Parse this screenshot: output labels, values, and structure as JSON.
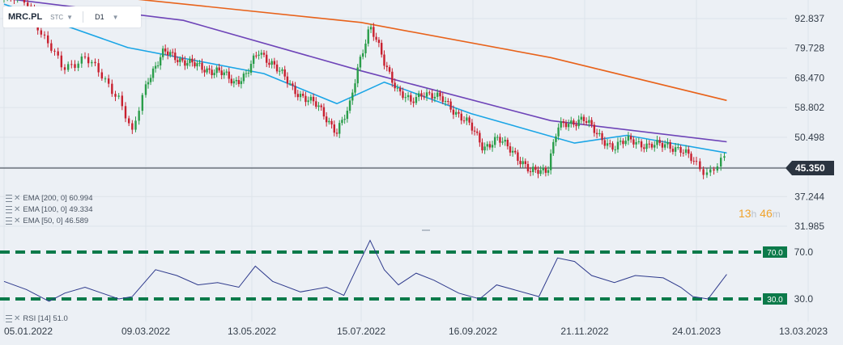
{
  "toolbar": {
    "symbol": "MRC.PL",
    "exchange": "STC",
    "timeframe": "D1"
  },
  "indicators": {
    "ema": [
      {
        "label": "EMA [200, 0] 60.994",
        "color": "#e8621a"
      },
      {
        "label": "EMA [100, 0] 49.334",
        "color": "#6e44b8"
      },
      {
        "label": "EMA [50, 0] 46.589",
        "color": "#1aa5e6"
      }
    ],
    "rsi": {
      "label": "RSI [14] 51.0",
      "color": "#2e3a8c"
    }
  },
  "countdown": {
    "hours": "13",
    "h_unit": "h",
    "minutes": "46",
    "m_unit": "m"
  },
  "last_price": "45.350",
  "chart_data": [
    {
      "type": "candlestick",
      "title": "MRC.PL",
      "timeframe": "D1",
      "y_ticks": [
        "92.837",
        "79.728",
        "68.470",
        "58.802",
        "50.498",
        "43.368",
        "37.244",
        "31.985"
      ],
      "y_tick_values": [
        92.837,
        79.728,
        68.47,
        58.802,
        50.498,
        43.368,
        37.244,
        31.985
      ],
      "x_ticks": [
        "05.01.2022",
        "09.03.2022",
        "13.05.2022",
        "15.07.2022",
        "16.09.2022",
        "21.11.2022",
        "24.01.2023",
        "13.03.2023"
      ],
      "price_path": [
        [
          "05.01.2022",
          103
        ],
        [
          "15.01.2022",
          102
        ],
        [
          "22.01.2022",
          85
        ],
        [
          "31.01.2022",
          72
        ],
        [
          "10.02.2022",
          76
        ],
        [
          "25.02.2022",
          62
        ],
        [
          "03.03.2022",
          51
        ],
        [
          "10.03.2022",
          68
        ],
        [
          "20.03.2022",
          78
        ],
        [
          "01.04.2022",
          75
        ],
        [
          "12.04.2022",
          72
        ],
        [
          "22.04.2022",
          71
        ],
        [
          "02.05.2022",
          67
        ],
        [
          "10.05.2022",
          70
        ],
        [
          "17.05.2022",
          78
        ],
        [
          "25.05.2022",
          74
        ],
        [
          "05.06.2022",
          65
        ],
        [
          "20.06.2022",
          59
        ],
        [
          "01.07.2022",
          52
        ],
        [
          "08.07.2022",
          58
        ],
        [
          "14.07.2022",
          75
        ],
        [
          "20.07.2022",
          89
        ],
        [
          "28.07.2022",
          74
        ],
        [
          "05.08.2022",
          64
        ],
        [
          "12.08.2022",
          60
        ],
        [
          "19.08.2022",
          64
        ],
        [
          "30.08.2022",
          61
        ],
        [
          "12.09.2022",
          55
        ],
        [
          "22.09.2022",
          48
        ],
        [
          "30.09.2022",
          50
        ],
        [
          "10.10.2022",
          47
        ],
        [
          "20.10.2022",
          42
        ],
        [
          "30.10.2022",
          43
        ],
        [
          "05.11.2022",
          53
        ],
        [
          "12.11.2022",
          54
        ],
        [
          "20.11.2022",
          56
        ],
        [
          "28.11.2022",
          51
        ],
        [
          "08.12.2022",
          48
        ],
        [
          "18.12.2022",
          50
        ],
        [
          "28.12.2022",
          48
        ],
        [
          "07.01.2023",
          49
        ],
        [
          "15.01.2023",
          47
        ],
        [
          "22.01.2023",
          45
        ],
        [
          "29.01.2023",
          42
        ],
        [
          "06.02.2023",
          45.35
        ]
      ],
      "ema200": [
        [
          "01.03.2022",
          103
        ],
        [
          "15.07.2022",
          91
        ],
        [
          "01.11.2022",
          76
        ],
        [
          "06.02.2023",
          60.994
        ]
      ],
      "ema100": [
        [
          "05.01.2022",
          103
        ],
        [
          "01.04.2022",
          92
        ],
        [
          "15.07.2022",
          71
        ],
        [
          "01.11.2022",
          55
        ],
        [
          "06.02.2023",
          49.334
        ]
      ],
      "ema50": [
        [
          "05.01.2022",
          100
        ],
        [
          "01.03.2022",
          80
        ],
        [
          "20.05.2022",
          70
        ],
        [
          "01.07.2022",
          60
        ],
        [
          "28.07.2022",
          67
        ],
        [
          "15.09.2022",
          57
        ],
        [
          "15.11.2022",
          49
        ],
        [
          "15.12.2022",
          51
        ],
        [
          "06.02.2023",
          46.589
        ]
      ],
      "last_value": 45.35
    },
    {
      "type": "line",
      "title": "RSI [14]",
      "y_ticks": [
        "70.0",
        "30.0"
      ],
      "levels": [
        70,
        30
      ],
      "ylim": [
        20,
        80
      ],
      "rsi_path": [
        [
          "05.01.2022",
          45
        ],
        [
          "15.01.2022",
          38
        ],
        [
          "25.01.2022",
          28
        ],
        [
          "01.02.2022",
          35
        ],
        [
          "10.02.2022",
          40
        ],
        [
          "25.02.2022",
          30
        ],
        [
          "03.03.2022",
          32
        ],
        [
          "15.03.2022",
          55
        ],
        [
          "28.03.2022",
          50
        ],
        [
          "10.04.2022",
          42
        ],
        [
          "22.04.2022",
          44
        ],
        [
          "05.05.2022",
          40
        ],
        [
          "15.05.2022",
          58
        ],
        [
          "25.05.2022",
          45
        ],
        [
          "10.06.2022",
          36
        ],
        [
          "25.06.2022",
          40
        ],
        [
          "05.07.2022",
          33
        ],
        [
          "12.07.2022",
          55
        ],
        [
          "20.07.2022",
          80
        ],
        [
          "28.07.2022",
          55
        ],
        [
          "05.08.2022",
          42
        ],
        [
          "15.08.2022",
          52
        ],
        [
          "25.08.2022",
          46
        ],
        [
          "08.09.2022",
          35
        ],
        [
          "20.09.2022",
          30
        ],
        [
          "30.09.2022",
          42
        ],
        [
          "10.10.2022",
          38
        ],
        [
          "25.10.2022",
          32
        ],
        [
          "05.11.2022",
          65
        ],
        [
          "15.11.2022",
          62
        ],
        [
          "25.11.2022",
          50
        ],
        [
          "08.12.2022",
          44
        ],
        [
          "20.12.2022",
          50
        ],
        [
          "05.01.2023",
          48
        ],
        [
          "15.01.2023",
          40
        ],
        [
          "22.01.2023",
          32
        ],
        [
          "29.01.2023",
          30
        ],
        [
          "06.02.2023",
          51.0
        ]
      ],
      "last_value": 51.0
    }
  ]
}
